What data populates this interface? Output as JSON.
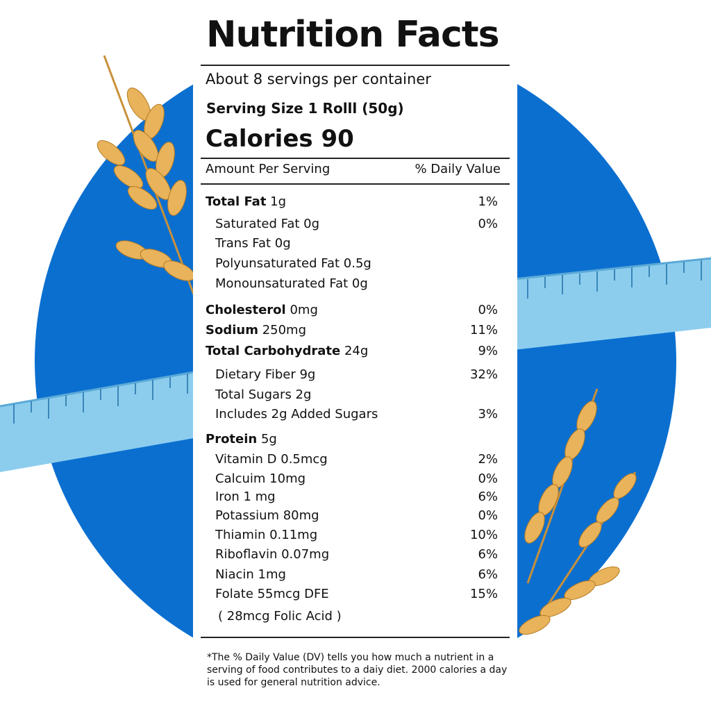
{
  "label": {
    "title": "Nutrition Facts",
    "servings_per_container": "About 8 servings per container",
    "serving_size": "Serving Size 1 Rolll (50g)",
    "calories": "Calories 90",
    "amount_header": "Amount Per Serving",
    "dv_header": "% Daily Value",
    "nutrients": [
      {
        "name": "Total Fat",
        "amount": "1g",
        "dv": "1%"
      },
      {
        "name": "Saturated Fat 0g",
        "dv": "0%"
      },
      {
        "name": "Trans Fat 0g",
        "dv": ""
      },
      {
        "name": "Polyunsaturated Fat 0.5g",
        "dv": ""
      },
      {
        "name": "Monounsaturated Fat 0g",
        "dv": ""
      },
      {
        "name": "Cholesterol",
        "amount": "0mg",
        "dv": "0%"
      },
      {
        "name": "Sodium",
        "amount": "250mg",
        "dv": "11%"
      },
      {
        "name": "Total Carbohydrate",
        "amount": "24g",
        "dv": "9%"
      },
      {
        "name": "Dietary Fiber 9g",
        "dv": "32%"
      },
      {
        "name": "Total Sugars 2g",
        "dv": ""
      },
      {
        "name": "Includes 2g Added Sugars",
        "dv": "3%"
      },
      {
        "name": "Protein",
        "amount": "5g",
        "dv": ""
      },
      {
        "name": "Vitamin D 0.5mcg",
        "dv": "2%"
      },
      {
        "name": "Calcuim 10mg",
        "dv": "0%"
      },
      {
        "name": "Iron 1 mg",
        "dv": "6%"
      },
      {
        "name": "Potassium 80mg",
        "dv": "0%"
      },
      {
        "name": "Thiamin  0.11mg",
        "dv": "10%"
      },
      {
        "name": "Riboflavin 0.07mg",
        "dv": "6%"
      },
      {
        "name": "Niacin 1mg",
        "dv": "6%"
      },
      {
        "name": "Folate 55mcg DFE",
        "dv": "15%"
      },
      {
        "name": "( 28mcg Folic Acid )",
        "dv": ""
      }
    ],
    "footnote": "*The % Daily Value (DV) tells you how much a nutrient in a serving of food contributes to a daiy diet. 2000 calories a day is used for general nutrition advice."
  },
  "colors": {
    "circle": "#0b6fd0",
    "tape": "#8ccdee",
    "wheat": "#e8b35a"
  }
}
